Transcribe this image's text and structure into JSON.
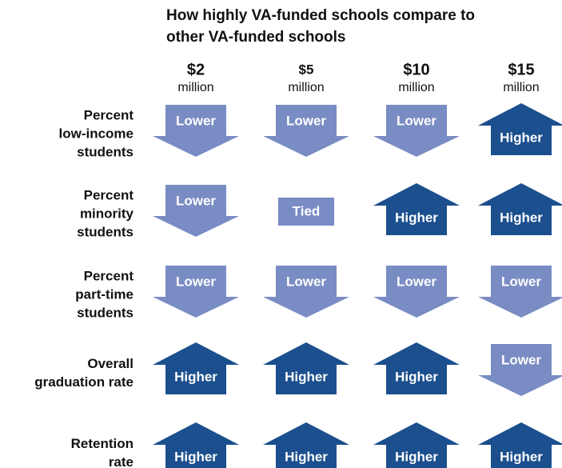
{
  "title": [
    "How highly VA-funded schools compare to",
    "other VA-funded schools"
  ],
  "columns": [
    {
      "amount": "$2",
      "unit": "million"
    },
    {
      "amount": "$5",
      "unit": "million"
    },
    {
      "amount": "$10",
      "unit": "million"
    },
    {
      "amount": "$15",
      "unit": "million"
    }
  ],
  "rows": [
    {
      "label": [
        "Percent",
        "low-income",
        "students"
      ],
      "cells": [
        "Lower",
        "Lower",
        "Lower",
        "Higher"
      ]
    },
    {
      "label": [
        "Percent",
        "minority",
        "students"
      ],
      "cells": [
        "Lower",
        "Tied",
        "Higher",
        "Higher"
      ]
    },
    {
      "label": [
        "Percent",
        "part-time",
        "students"
      ],
      "cells": [
        "Lower",
        "Lower",
        "Lower",
        "Lower"
      ]
    },
    {
      "label": [
        "Overall",
        "graduation rate"
      ],
      "cells": [
        "Higher",
        "Higher",
        "Higher",
        "Lower"
      ]
    },
    {
      "label": [
        "Retention",
        "rate"
      ],
      "cells": [
        "Higher",
        "Higher",
        "Higher",
        "Higher"
      ]
    }
  ]
}
